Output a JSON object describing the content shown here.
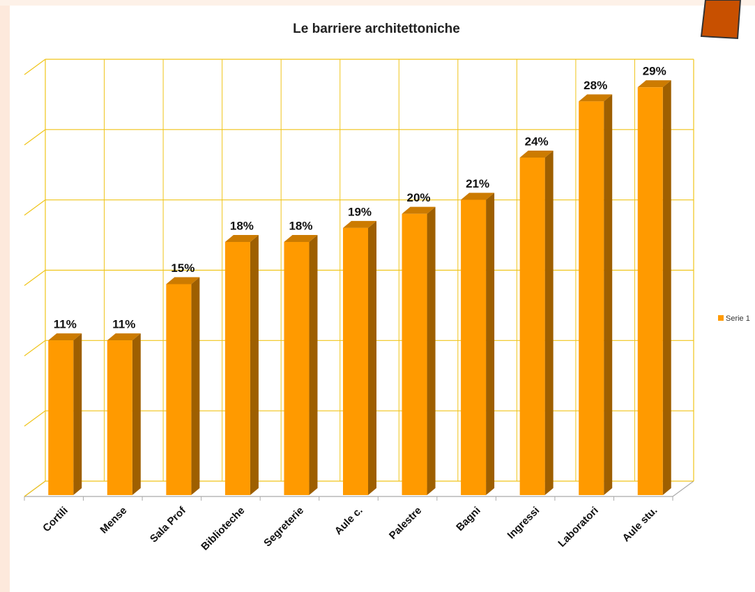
{
  "chart_data": {
    "type": "bar3d",
    "title": "Le barriere architettoniche",
    "categories": [
      "Cortili",
      "Mense",
      "Sala Prof",
      "Biblioteche",
      "Segreterie",
      "Aule c.",
      "Palestre",
      "Bagni",
      "Ingressi",
      "Laboratori",
      "Aule stu."
    ],
    "series": [
      {
        "name": "Serie 1",
        "color": "#ff9a00",
        "values": [
          11,
          11,
          15,
          18,
          18,
          19,
          20,
          21,
          24,
          28,
          29
        ],
        "value_labels": [
          "11%",
          "11%",
          "15%",
          "18%",
          "18%",
          "19%",
          "20%",
          "21%",
          "24%",
          "28%",
          "29%"
        ]
      }
    ],
    "ylim": [
      0,
      30
    ],
    "yticks": [
      0,
      5,
      10,
      15,
      20,
      25,
      30
    ],
    "grid": true,
    "legend": "right"
  }
}
